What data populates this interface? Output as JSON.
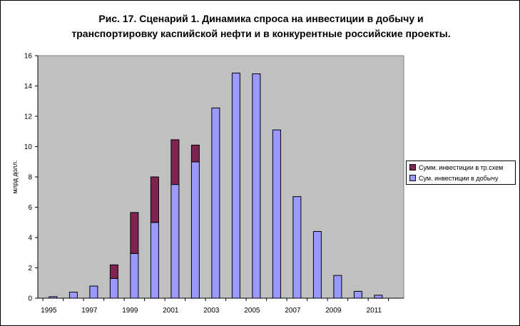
{
  "chart_data": {
    "type": "bar",
    "stacked": true,
    "title": "Рис. 17. Сценарий 1. Динамика спроса на инвестиции в добычу и транспортировку каспийской нефти и в конкурентные российские проекты.",
    "title_lines": [
      "Рис. 17. Сценарий 1. Динамика спроса на инвестиции в добычу и",
      "транспортировку каспийской нефти и в конкурентные российские проекты."
    ],
    "ylabel": "млрд долл.",
    "xlabel": "",
    "ylim": [
      0,
      16
    ],
    "yticks": [
      "0",
      "2",
      "4",
      "6",
      "8",
      "10",
      "12",
      "14",
      "16"
    ],
    "xtick_labels": [
      "1995",
      "1997",
      "1999",
      "2001",
      "2003",
      "2005",
      "2007",
      "2009",
      "2011"
    ],
    "categories": [
      "1995",
      "1996",
      "1997",
      "1998",
      "1999",
      "2000",
      "2001",
      "2002",
      "2003",
      "2004",
      "2005",
      "2006",
      "2007",
      "2008",
      "2009",
      "2010",
      "2011"
    ],
    "series": [
      {
        "name": "Сум. инвестиции в добычу",
        "color": "#9999ff",
        "values": [
          0.1,
          0.4,
          0.8,
          1.3,
          2.95,
          5.0,
          7.5,
          9.0,
          12.55,
          14.85,
          14.8,
          11.1,
          6.7,
          4.4,
          1.5,
          0.45,
          0.2
        ]
      },
      {
        "name": "Сумм. инвестиции в тр.схем",
        "color": "#7f2353",
        "values": [
          0,
          0,
          0,
          0.9,
          2.7,
          3.0,
          2.95,
          1.1,
          0,
          0,
          0,
          0,
          0,
          0,
          0,
          0,
          0
        ]
      }
    ],
    "legend_position": "right",
    "plot_background": "#c0c0c0",
    "grid": false
  }
}
